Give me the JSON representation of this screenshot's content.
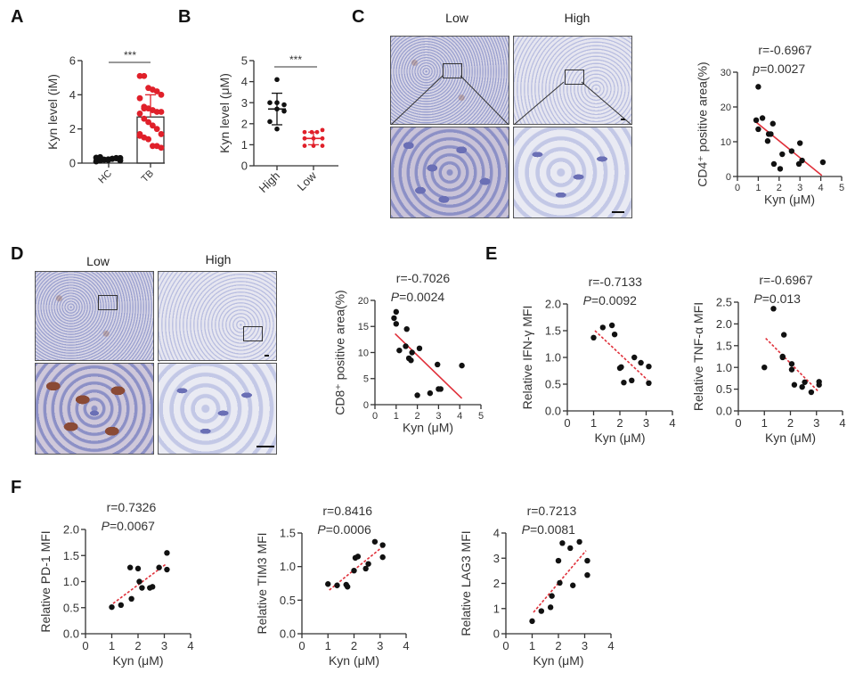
{
  "panels": {
    "A": "A",
    "B": "B",
    "C": "C",
    "D": "D",
    "E": "E",
    "F": "F"
  },
  "micrographs": {
    "C": {
      "low_label": "Low",
      "high_label": "High"
    },
    "D": {
      "low_label": "Low",
      "high_label": "High"
    }
  },
  "colors": {
    "red": "#e0202a",
    "black": "#111111",
    "fit_red": "#e0303a"
  },
  "chart_data": [
    {
      "id": "A",
      "type": "bar",
      "title": "",
      "ylabel": "Kyn level (iM)",
      "xlabel": "",
      "categories": [
        "HC",
        "TB"
      ],
      "ylim": [
        0,
        6
      ],
      "yticks": [
        "0",
        "2",
        "4",
        "6"
      ],
      "bar_values": [
        0.25,
        2.7
      ],
      "error_sd": [
        0.1,
        1.3
      ],
      "points": {
        "HC": [
          0.1,
          0.15,
          0.2,
          0.22,
          0.25,
          0.28,
          0.3,
          0.32,
          0.35,
          0.2,
          0.18,
          0.25,
          0.3,
          0.15
        ],
        "TB": [
          5.1,
          5.1,
          4.4,
          4.3,
          4.2,
          4.0,
          3.8,
          3.3,
          3.2,
          3.1,
          3.0,
          3.0,
          2.9,
          2.6,
          2.4,
          2.2,
          2.0,
          1.7,
          1.6,
          1.5,
          1.4,
          1.0,
          1.0,
          0.9,
          1.7,
          3.2
        ]
      },
      "significance": "***"
    },
    {
      "id": "B",
      "type": "scatter",
      "title": "",
      "ylabel": "Kyn level (μM)",
      "xlabel": "",
      "categories": [
        "High",
        "Low"
      ],
      "ylim": [
        0,
        5
      ],
      "yticks": [
        "0",
        "1",
        "2",
        "3",
        "4",
        "5"
      ],
      "means": [
        2.7,
        1.3
      ],
      "sd": [
        0.75,
        0.3
      ],
      "points": {
        "High": [
          4.1,
          3.0,
          3.0,
          2.9,
          2.7,
          2.6,
          2.1,
          1.75
        ],
        "Low": [
          1.6,
          1.6,
          1.7,
          1.3,
          1.3,
          1.3,
          0.95,
          0.95,
          0.95,
          1.6
        ]
      },
      "significance": "***"
    },
    {
      "id": "C",
      "type": "scatter",
      "ylabel": "CD4⁺ positive area(%)",
      "xlabel": "Kyn (μM)",
      "annotation_r": "r=-0.6967",
      "annotation_p_prefix": "p",
      "annotation_p": "=0.0027",
      "xlim": [
        0,
        5
      ],
      "ylim": [
        0,
        30
      ],
      "xticks": [
        "0",
        "1",
        "2",
        "3",
        "4",
        "5"
      ],
      "yticks": [
        "0",
        "10",
        "20",
        "30"
      ],
      "points": [
        [
          1.0,
          25.8
        ],
        [
          0.9,
          16.2
        ],
        [
          1.2,
          16.8
        ],
        [
          1.0,
          13.6
        ],
        [
          1.7,
          15.2
        ],
        [
          1.5,
          12.2
        ],
        [
          1.6,
          12.2
        ],
        [
          1.45,
          10.2
        ],
        [
          1.75,
          3.6
        ],
        [
          2.05,
          2.2
        ],
        [
          2.15,
          6.4
        ],
        [
          2.6,
          7.3
        ],
        [
          3.0,
          9.6
        ],
        [
          2.95,
          3.6
        ],
        [
          3.1,
          4.6
        ],
        [
          4.1,
          4.1
        ]
      ],
      "fit": [
        [
          0.9,
          15.6
        ],
        [
          4.05,
          0.3
        ]
      ],
      "fit_style": "solid"
    },
    {
      "id": "D",
      "type": "scatter",
      "ylabel": "CD8⁺ positive area(%)",
      "xlabel": "Kyn (μM)",
      "annotation_r": "r=-0.7026",
      "annotation_p_prefix": "P",
      "annotation_p": "=0.0024",
      "xlim": [
        0,
        5
      ],
      "ylim": [
        0,
        20
      ],
      "xticks": [
        "0",
        "1",
        "2",
        "3",
        "4",
        "5"
      ],
      "yticks": [
        "0",
        "5",
        "10",
        "15",
        "20"
      ],
      "points": [
        [
          1.0,
          17.8
        ],
        [
          0.9,
          16.6
        ],
        [
          1.0,
          15.5
        ],
        [
          1.5,
          14.5
        ],
        [
          1.15,
          10.4
        ],
        [
          1.45,
          11.2
        ],
        [
          1.75,
          10.0
        ],
        [
          1.6,
          8.9
        ],
        [
          1.7,
          8.5
        ],
        [
          2.1,
          10.8
        ],
        [
          2.95,
          7.7
        ],
        [
          4.1,
          7.5
        ],
        [
          2.0,
          1.8
        ],
        [
          2.6,
          2.2
        ],
        [
          3.0,
          3.0
        ],
        [
          3.1,
          3.0
        ]
      ],
      "fit": [
        [
          0.95,
          13.6
        ],
        [
          4.1,
          1.2
        ]
      ],
      "fit_style": "solid"
    },
    {
      "id": "E1",
      "type": "scatter",
      "ylabel": "Relative IFN-γ MFI",
      "xlabel": "Kyn (μM)",
      "annotation_r": "r=-0.7133",
      "annotation_p_prefix": "P",
      "annotation_p": "=0.0092",
      "xlim": [
        0,
        4
      ],
      "ylim": [
        0,
        2
      ],
      "xticks": [
        "0",
        "1",
        "2",
        "3",
        "4"
      ],
      "yticks": [
        "0.0",
        "0.5",
        "1.0",
        "1.5",
        "2.0"
      ],
      "points": [
        [
          1.0,
          1.37
        ],
        [
          1.35,
          1.56
        ],
        [
          1.7,
          1.6
        ],
        [
          1.8,
          1.43
        ],
        [
          2.0,
          0.8
        ],
        [
          2.05,
          0.82
        ],
        [
          2.15,
          0.53
        ],
        [
          2.45,
          0.57
        ],
        [
          2.55,
          1.0
        ],
        [
          2.8,
          0.9
        ],
        [
          3.1,
          0.83
        ],
        [
          3.1,
          0.52
        ]
      ],
      "fit": [
        [
          1.05,
          1.5
        ],
        [
          3.05,
          0.58
        ]
      ],
      "fit_style": "dashed"
    },
    {
      "id": "E2",
      "type": "scatter",
      "ylabel": "Relative TNF-α MFI",
      "xlabel": "Kyn (μM)",
      "annotation_r": "r=-0.6967",
      "annotation_p_prefix": "P",
      "annotation_p": "=0.013",
      "xlim": [
        0,
        4
      ],
      "ylim": [
        0,
        2.5
      ],
      "xticks": [
        "0",
        "1",
        "2",
        "3",
        "4"
      ],
      "yticks": [
        "0.0",
        "0.5",
        "1.0",
        "1.5",
        "2.0",
        "2.5"
      ],
      "points": [
        [
          1.0,
          1.0
        ],
        [
          1.35,
          2.35
        ],
        [
          1.75,
          1.75
        ],
        [
          1.7,
          1.25
        ],
        [
          1.7,
          1.23
        ],
        [
          2.05,
          1.08
        ],
        [
          2.05,
          0.95
        ],
        [
          2.15,
          0.6
        ],
        [
          2.45,
          0.55
        ],
        [
          2.55,
          0.66
        ],
        [
          2.8,
          0.43
        ],
        [
          3.1,
          0.6
        ],
        [
          3.1,
          0.67
        ]
      ],
      "fit": [
        [
          1.05,
          1.67
        ],
        [
          3.05,
          0.46
        ]
      ],
      "fit_style": "dashed"
    },
    {
      "id": "F1",
      "type": "scatter",
      "ylabel": "Relative PD-1 MFI",
      "xlabel": "Kyn (μM)",
      "annotation_r": "r=0.7326",
      "annotation_p_prefix": "P",
      "annotation_p": "=0.0067",
      "xlim": [
        0,
        4
      ],
      "ylim": [
        0,
        2
      ],
      "xticks": [
        "0",
        "1",
        "2",
        "3",
        "4"
      ],
      "yticks": [
        "0.0",
        "0.5",
        "1.0",
        "1.5",
        "2.0"
      ],
      "points": [
        [
          1.0,
          0.51
        ],
        [
          1.35,
          0.55
        ],
        [
          1.7,
          1.27
        ],
        [
          1.75,
          0.67
        ],
        [
          2.0,
          1.25
        ],
        [
          2.05,
          1.0
        ],
        [
          2.15,
          0.88
        ],
        [
          2.45,
          0.88
        ],
        [
          2.55,
          0.9
        ],
        [
          2.8,
          1.27
        ],
        [
          3.1,
          1.55
        ],
        [
          3.1,
          1.23
        ]
      ],
      "fit": [
        [
          1.05,
          0.58
        ],
        [
          3.05,
          1.33
        ]
      ],
      "fit_style": "dashed"
    },
    {
      "id": "F2",
      "type": "scatter",
      "ylabel": "Relative TIM3 MFI",
      "xlabel": "Kyn (μM)",
      "annotation_r": "r=0.8416",
      "annotation_p_prefix": "P",
      "annotation_p": "=0.0006",
      "xlim": [
        0,
        4
      ],
      "ylim": [
        0,
        1.5
      ],
      "xticks": [
        "0",
        "1",
        "2",
        "3",
        "4"
      ],
      "yticks": [
        "0.0",
        "0.5",
        "1.0",
        "1.5"
      ],
      "points": [
        [
          1.0,
          0.74
        ],
        [
          1.35,
          0.72
        ],
        [
          1.7,
          0.73
        ],
        [
          1.75,
          0.7
        ],
        [
          2.0,
          0.94
        ],
        [
          2.05,
          1.13
        ],
        [
          2.15,
          1.15
        ],
        [
          2.45,
          0.97
        ],
        [
          2.55,
          1.04
        ],
        [
          2.8,
          1.37
        ],
        [
          3.1,
          1.32
        ],
        [
          3.1,
          1.14
        ]
      ],
      "fit": [
        [
          1.05,
          0.65
        ],
        [
          3.05,
          1.28
        ]
      ],
      "fit_style": "dashed"
    },
    {
      "id": "F3",
      "type": "scatter",
      "ylabel": "Relative LAG3  MFI",
      "xlabel": "Kyn (μM)",
      "annotation_r": "r=0.7213",
      "annotation_p_prefix": "P",
      "annotation_p": "=0.0081",
      "xlim": [
        0,
        4
      ],
      "ylim": [
        0,
        4
      ],
      "xticks": [
        "0",
        "1",
        "2",
        "3",
        "4"
      ],
      "yticks": [
        "0",
        "1",
        "2",
        "3",
        "4"
      ],
      "points": [
        [
          1.0,
          0.5
        ],
        [
          1.35,
          0.9
        ],
        [
          1.7,
          1.05
        ],
        [
          1.75,
          1.5
        ],
        [
          2.0,
          2.9
        ],
        [
          2.05,
          2.02
        ],
        [
          2.15,
          3.6
        ],
        [
          2.45,
          3.4
        ],
        [
          2.55,
          1.92
        ],
        [
          2.8,
          3.65
        ],
        [
          3.1,
          2.9
        ],
        [
          3.1,
          2.33
        ]
      ],
      "fit": [
        [
          1.05,
          0.85
        ],
        [
          3.05,
          3.3
        ]
      ],
      "fit_style": "dashed"
    }
  ]
}
